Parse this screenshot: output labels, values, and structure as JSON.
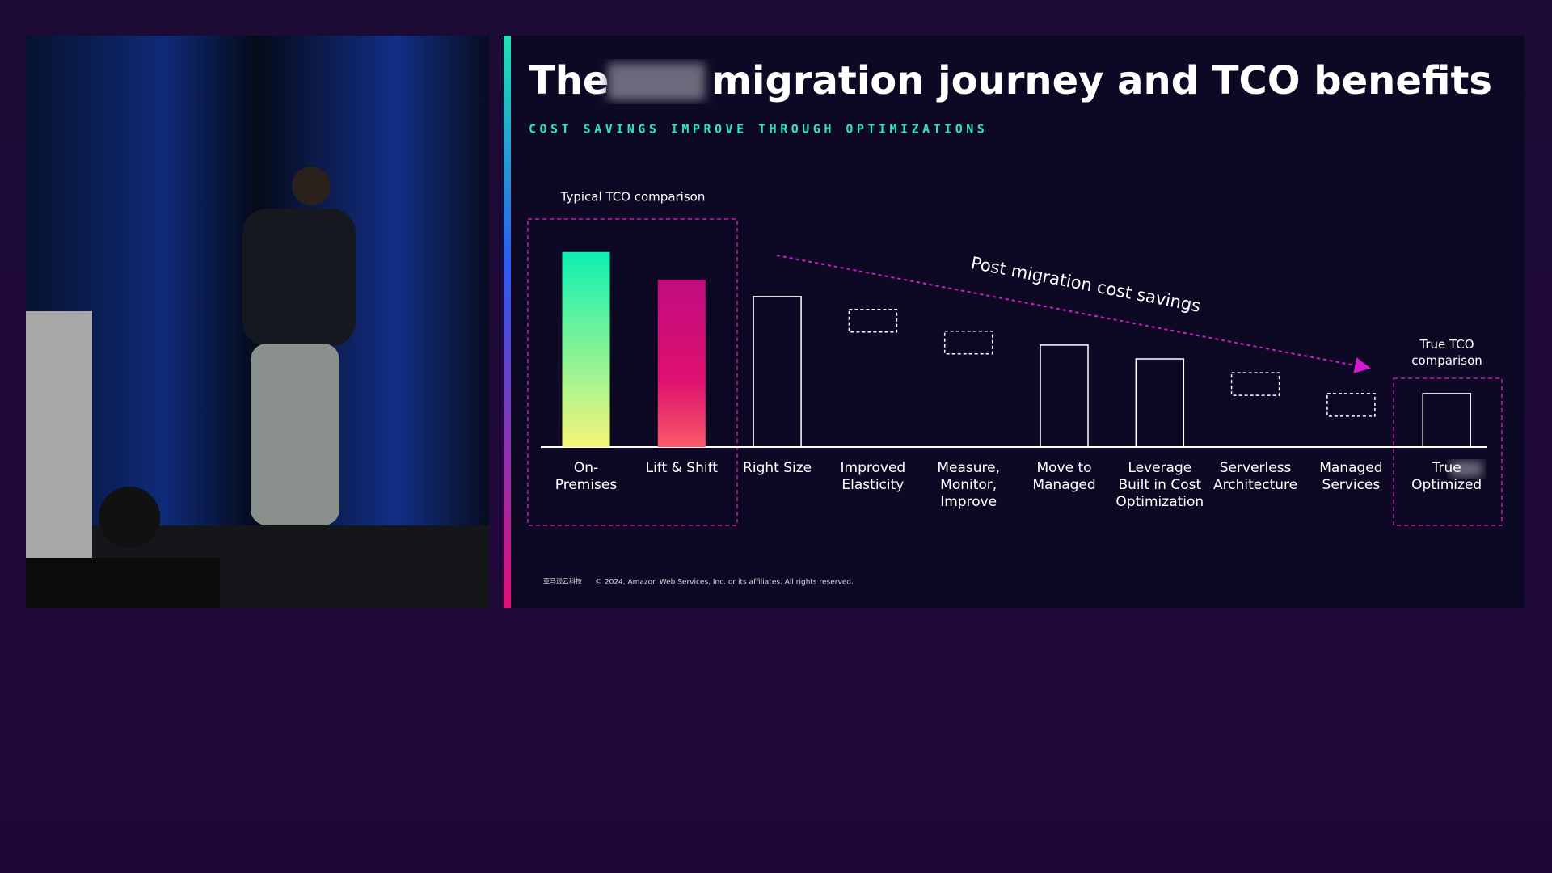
{
  "chart_data": {
    "type": "bar",
    "title_start": "The",
    "title_end": "migration journey and TCO benefits",
    "subtitle": "COST SAVINGS IMPROVE THROUGH OPTIMIZATIONS",
    "annotations": {
      "left_box": "Typical TCO comparison",
      "right_box": "True TCO\ncomparison",
      "trend": "Post migration cost savings"
    },
    "categories": [
      "On-\nPremises",
      "Lift & Shift",
      "Right Size",
      "Improved\nElasticity",
      "Measure,\nMonitor,\nImprove",
      "Move to\nManaged",
      "Leverage\nBuilt in Cost\nOptimization",
      "Serverless\nArchitecture",
      "Managed\nServices",
      "True\nOptimized"
    ],
    "values": [
      197,
      169,
      152,
      139,
      117,
      103,
      89,
      75,
      54,
      54
    ],
    "bar_styles": [
      "gradient-teal",
      "gradient-magenta",
      "outline",
      "dashed",
      "dashed",
      "outline",
      "outline",
      "dashed",
      "dashed",
      "outline"
    ],
    "logo": "亚马逊云科技",
    "footer": "© 2024, Amazon Web Services, Inc. or its affiliates. All rights reserved."
  }
}
